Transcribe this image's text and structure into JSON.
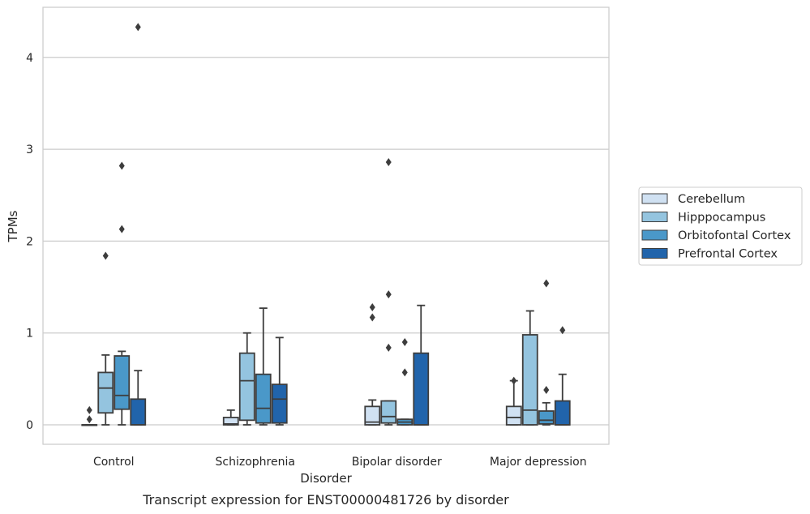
{
  "chart_data": {
    "type": "box",
    "title": "",
    "caption": "Transcript expression for ENST00000481726 by disorder",
    "xlabel": "Disorder",
    "ylabel": "TPMs",
    "ylim": [
      -0.21,
      4.55
    ],
    "yticks": [
      0,
      1,
      2,
      3,
      4
    ],
    "grid": "horizontal",
    "legend_position": "right",
    "categories": [
      "Control",
      "Schizophrenia",
      "Bipolar disorder",
      "Major depression"
    ],
    "series": [
      {
        "name": "Cerebellum",
        "color": "#d0e1f2",
        "boxes": [
          {
            "q1": 0.0,
            "median": 0.0,
            "q3": 0.0,
            "whisker_low": 0.0,
            "whisker_high": 0.0,
            "outliers": [
              0.06,
              0.16
            ]
          },
          {
            "q1": 0.0,
            "median": 0.01,
            "q3": 0.08,
            "whisker_low": 0.0,
            "whisker_high": 0.16,
            "outliers": []
          },
          {
            "q1": 0.0,
            "median": 0.03,
            "q3": 0.2,
            "whisker_low": 0.0,
            "whisker_high": 0.27,
            "outliers": [
              1.17,
              1.28
            ]
          },
          {
            "q1": 0.0,
            "median": 0.08,
            "q3": 0.2,
            "whisker_low": 0.0,
            "whisker_high": 0.48,
            "outliers": [
              0.48
            ]
          }
        ]
      },
      {
        "name": "Hipppocampus",
        "color": "#94c4df",
        "boxes": [
          {
            "q1": 0.13,
            "median": 0.4,
            "q3": 0.57,
            "whisker_low": 0.0,
            "whisker_high": 0.76,
            "outliers": [
              1.84
            ]
          },
          {
            "q1": 0.05,
            "median": 0.48,
            "q3": 0.78,
            "whisker_low": 0.0,
            "whisker_high": 1.0,
            "outliers": []
          },
          {
            "q1": 0.02,
            "median": 0.09,
            "q3": 0.26,
            "whisker_low": 0.0,
            "whisker_high": 0.26,
            "outliers": [
              0.84,
              1.42,
              2.86
            ]
          },
          {
            "q1": 0.0,
            "median": 0.16,
            "q3": 0.98,
            "whisker_low": 0.0,
            "whisker_high": 1.24,
            "outliers": []
          }
        ]
      },
      {
        "name": "Orbitofontal Cortex",
        "color": "#4a98c9",
        "boxes": [
          {
            "q1": 0.17,
            "median": 0.32,
            "q3": 0.75,
            "whisker_low": 0.0,
            "whisker_high": 0.8,
            "outliers": [
              2.13,
              2.82
            ]
          },
          {
            "q1": 0.02,
            "median": 0.18,
            "q3": 0.55,
            "whisker_low": 0.0,
            "whisker_high": 1.27,
            "outliers": []
          },
          {
            "q1": 0.0,
            "median": 0.03,
            "q3": 0.06,
            "whisker_low": 0.0,
            "whisker_high": 0.06,
            "outliers": [
              0.57,
              0.9
            ]
          },
          {
            "q1": 0.01,
            "median": 0.05,
            "q3": 0.15,
            "whisker_low": 0.0,
            "whisker_high": 0.24,
            "outliers": [
              0.38,
              1.54
            ]
          }
        ]
      },
      {
        "name": "Prefrontal Cortex",
        "color": "#2164ab",
        "boxes": [
          {
            "q1": 0.0,
            "median": 0.0,
            "q3": 0.28,
            "whisker_low": 0.0,
            "whisker_high": 0.59,
            "outliers": [
              4.33
            ]
          },
          {
            "q1": 0.02,
            "median": 0.28,
            "q3": 0.44,
            "whisker_low": 0.0,
            "whisker_high": 0.95,
            "outliers": []
          },
          {
            "q1": 0.0,
            "median": 0.0,
            "q3": 0.78,
            "whisker_low": 0.0,
            "whisker_high": 1.3,
            "outliers": []
          },
          {
            "q1": 0.0,
            "median": 0.0,
            "q3": 0.26,
            "whisker_low": 0.0,
            "whisker_high": 0.55,
            "outliers": [
              1.03
            ]
          }
        ]
      }
    ]
  }
}
